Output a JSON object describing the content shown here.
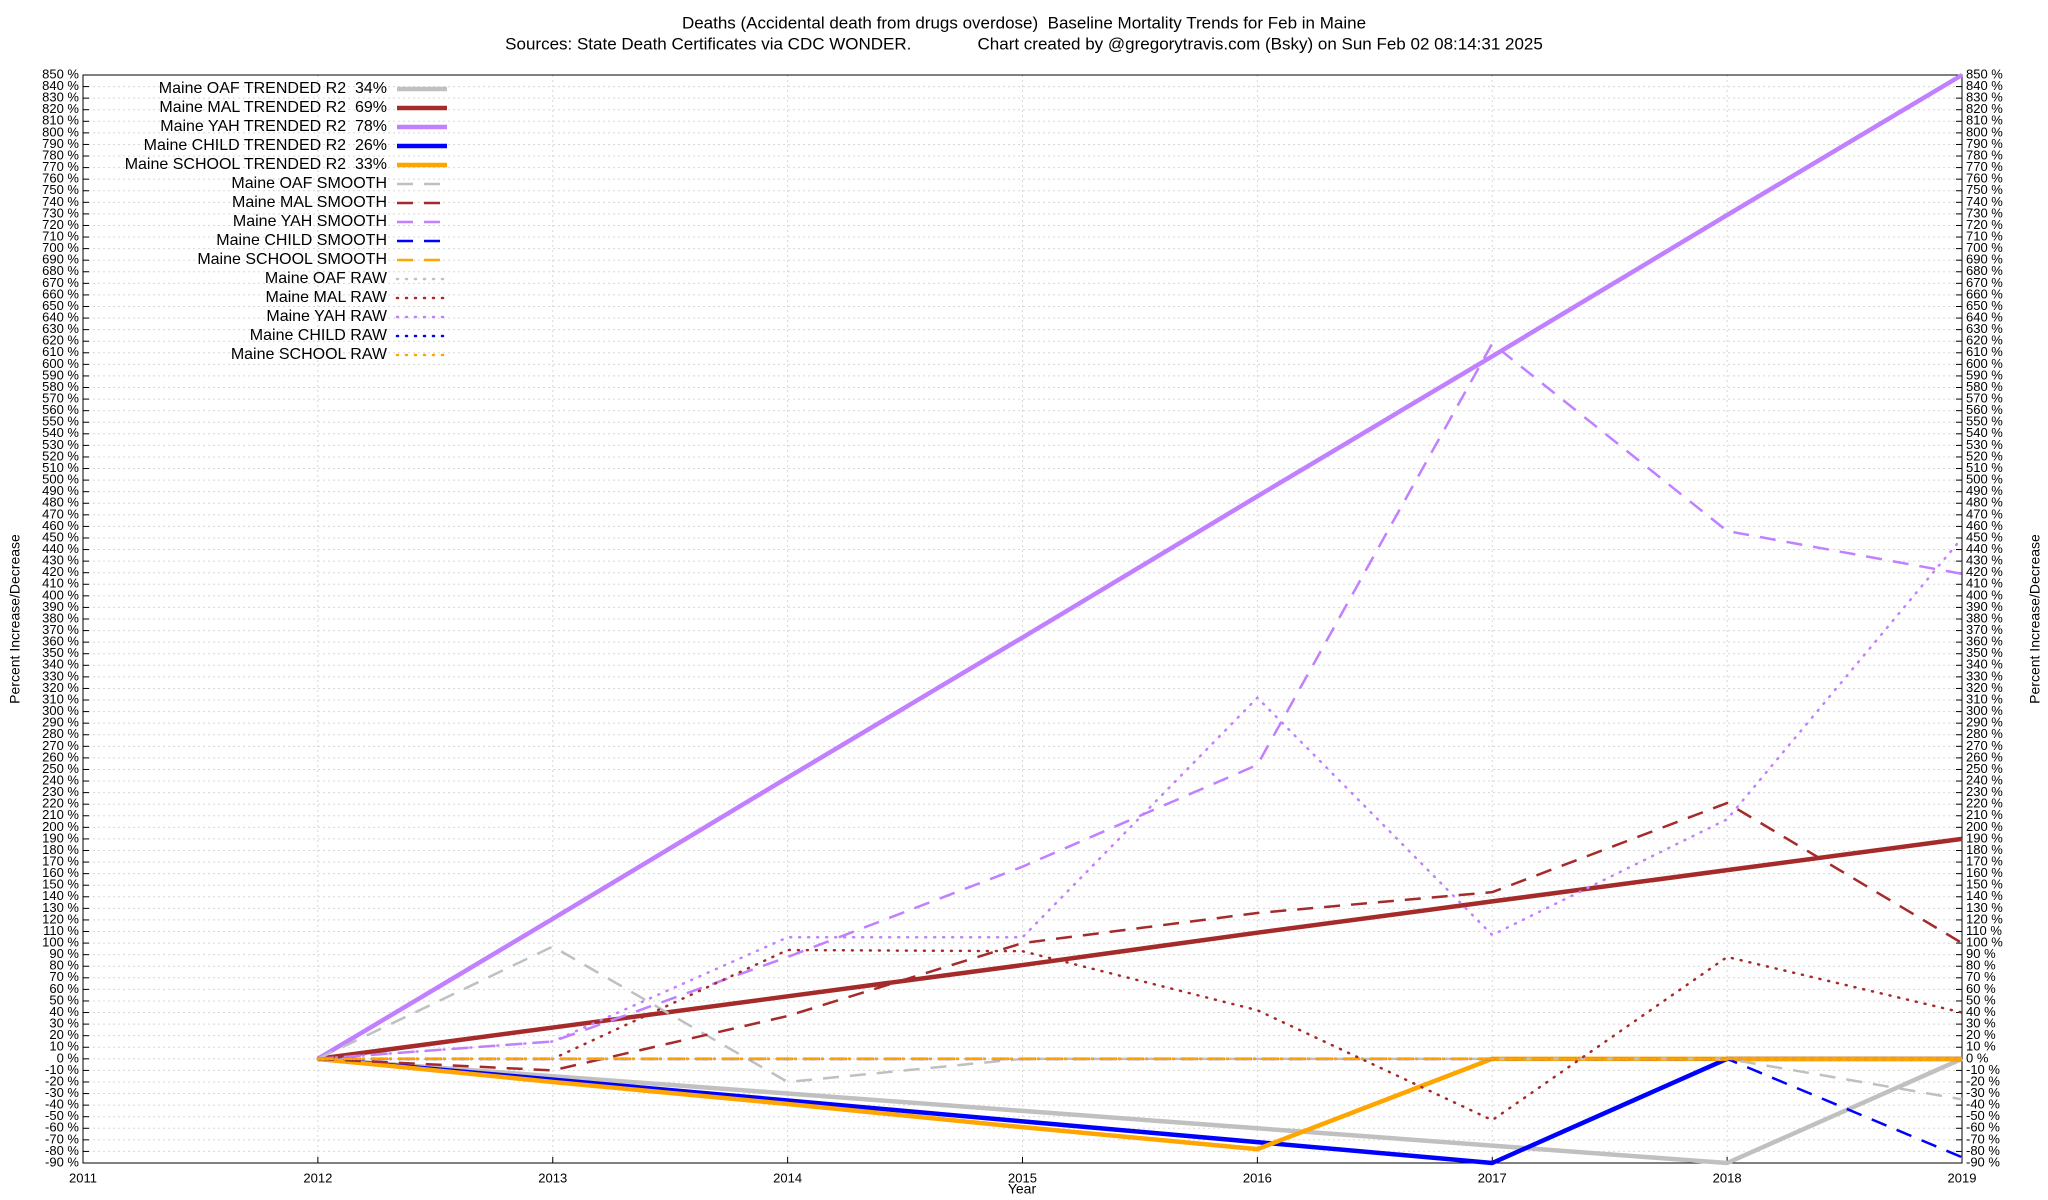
{
  "chart_data": {
    "type": "line",
    "title": "Deaths (Accidental death from drugs overdose)  Baseline Mortality Trends for Feb in Maine",
    "subtitle": "Sources: State Death Certificates via CDC WONDER.              Chart created by @gregorytravis.com (Bsky) on Sun Feb 02 08:14:31 2025",
    "xlabel": "Year",
    "ylabel": "Percent Increase/Decrease",
    "y2label": "Percent Increase/Decrease",
    "grid": true,
    "legend": "top-left",
    "xlim": [
      2011,
      2019
    ],
    "xticks": [
      2011,
      2012,
      2013,
      2014,
      2015,
      2016,
      2017,
      2018,
      2019
    ],
    "ylim": [
      -90,
      850
    ],
    "yticks": [
      {
        "value": -90,
        "label": "-90 %"
      },
      {
        "value": -80,
        "label": "-80 %"
      },
      {
        "value": -70,
        "label": "-70 %"
      },
      {
        "value": -60,
        "label": "-60 %"
      },
      {
        "value": -50,
        "label": "-50 %"
      },
      {
        "value": -40,
        "label": "-40 %"
      },
      {
        "value": -30,
        "label": "-30 %"
      },
      {
        "value": -20,
        "label": "-20 %"
      },
      {
        "value": -10,
        "label": "-10 %"
      },
      {
        "value": 0,
        "label": "0 %"
      },
      {
        "value": 10,
        "label": "10 %"
      },
      {
        "value": 20,
        "label": "20 %"
      },
      {
        "value": 30,
        "label": "30 %"
      },
      {
        "value": 40,
        "label": "40 %"
      },
      {
        "value": 50,
        "label": "50 %"
      },
      {
        "value": 60,
        "label": "60 %"
      },
      {
        "value": 70,
        "label": "70 %"
      },
      {
        "value": 80,
        "label": "80 %"
      },
      {
        "value": 90,
        "label": "90 %"
      },
      {
        "value": 100,
        "label": "100 %"
      },
      {
        "value": 110,
        "label": "110 %"
      },
      {
        "value": 120,
        "label": "120 %"
      },
      {
        "value": 130,
        "label": "130 %"
      },
      {
        "value": 140,
        "label": "140 %"
      },
      {
        "value": 150,
        "label": "150 %"
      },
      {
        "value": 160,
        "label": "160 %"
      },
      {
        "value": 170,
        "label": "170 %"
      },
      {
        "value": 180,
        "label": "180 %"
      },
      {
        "value": 190,
        "label": "190 %"
      },
      {
        "value": 200,
        "label": "200 %"
      },
      {
        "value": 210,
        "label": "210 %"
      },
      {
        "value": 220,
        "label": "220 %"
      },
      {
        "value": 230,
        "label": "230 %"
      },
      {
        "value": 240,
        "label": "240 %"
      },
      {
        "value": 250,
        "label": "250 %"
      },
      {
        "value": 260,
        "label": "260 %"
      },
      {
        "value": 270,
        "label": "270 %"
      },
      {
        "value": 280,
        "label": "280 %"
      },
      {
        "value": 290,
        "label": "290 %"
      },
      {
        "value": 300,
        "label": "300 %"
      },
      {
        "value": 310,
        "label": "310 %"
      },
      {
        "value": 320,
        "label": "320 %"
      },
      {
        "value": 330,
        "label": "330 %"
      },
      {
        "value": 340,
        "label": "340 %"
      },
      {
        "value": 350,
        "label": "350 %"
      },
      {
        "value": 360,
        "label": "360 %"
      },
      {
        "value": 370,
        "label": "370 %"
      },
      {
        "value": 380,
        "label": "380 %"
      },
      {
        "value": 390,
        "label": "390 %"
      },
      {
        "value": 400,
        "label": "400 %"
      },
      {
        "value": 410,
        "label": "410 %"
      },
      {
        "value": 420,
        "label": "420 %"
      },
      {
        "value": 430,
        "label": "430 %"
      },
      {
        "value": 440,
        "label": "440 %"
      },
      {
        "value": 450,
        "label": "450 %"
      },
      {
        "value": 460,
        "label": "460 %"
      },
      {
        "value": 470,
        "label": "470 %"
      },
      {
        "value": 480,
        "label": "480 %"
      },
      {
        "value": 490,
        "label": "490 %"
      },
      {
        "value": 500,
        "label": "500 %"
      },
      {
        "value": 510,
        "label": "510 %"
      },
      {
        "value": 520,
        "label": "520 %"
      },
      {
        "value": 530,
        "label": "530 %"
      },
      {
        "value": 540,
        "label": "540 %"
      },
      {
        "value": 550,
        "label": "550 %"
      },
      {
        "value": 560,
        "label": "560 %"
      },
      {
        "value": 570,
        "label": "570 %"
      },
      {
        "value": 580,
        "label": "580 %"
      },
      {
        "value": 590,
        "label": "590 %"
      },
      {
        "value": 600,
        "label": "600 %"
      },
      {
        "value": 610,
        "label": "610 %"
      },
      {
        "value": 620,
        "label": "620 %"
      },
      {
        "value": 630,
        "label": "630 %"
      },
      {
        "value": 640,
        "label": "640 %"
      },
      {
        "value": 650,
        "label": "650 %"
      },
      {
        "value": 660,
        "label": "660 %"
      },
      {
        "value": 670,
        "label": "670 %"
      },
      {
        "value": 680,
        "label": "680 %"
      },
      {
        "value": 690,
        "label": "690 %"
      },
      {
        "value": 700,
        "label": "700 %"
      },
      {
        "value": 710,
        "label": "710 %"
      },
      {
        "value": 720,
        "label": "720 %"
      },
      {
        "value": 730,
        "label": "730 %"
      },
      {
        "value": 740,
        "label": "740 %"
      },
      {
        "value": 750,
        "label": "750 %"
      },
      {
        "value": 760,
        "label": "760 %"
      },
      {
        "value": 770,
        "label": "770 %"
      },
      {
        "value": 780,
        "label": "780 %"
      },
      {
        "value": 790,
        "label": "790 %"
      },
      {
        "value": 800,
        "label": "800 %"
      },
      {
        "value": 810,
        "label": "810 %"
      },
      {
        "value": 820,
        "label": "820 %"
      },
      {
        "value": 830,
        "label": "830 %"
      },
      {
        "value": 840,
        "label": "840 %"
      },
      {
        "value": 850,
        "label": "850 %"
      }
    ],
    "x": [
      2012,
      2013,
      2014,
      2015,
      2016,
      2017,
      2018,
      2019
    ],
    "series": [
      {
        "name": "Maine OAF TRENDED R2  34%",
        "color": "#c0c0c0",
        "style": "solid",
        "width": 4.5,
        "values": [
          0,
          -15,
          -30,
          -45,
          -60,
          -75,
          -90,
          0
        ]
      },
      {
        "name": "Maine MAL TRENDED R2  69%",
        "color": "#a52a2a",
        "style": "solid",
        "width": 4.5,
        "values": [
          0,
          27,
          54,
          81,
          109,
          136,
          163,
          190
        ]
      },
      {
        "name": "Maine YAH TRENDED R2  78%",
        "color": "#c080ff",
        "style": "solid",
        "width": 4.5,
        "values": [
          0,
          121,
          243,
          364,
          486,
          607,
          729,
          850
        ]
      },
      {
        "name": "Maine CHILD TRENDED R2  26%",
        "color": "#0000ff",
        "style": "solid",
        "width": 4.5,
        "values": [
          0,
          -18,
          -36,
          -54,
          -72,
          -90,
          0,
          0
        ]
      },
      {
        "name": "Maine SCHOOL TRENDED R2  33%",
        "color": "#ffa500",
        "style": "solid",
        "width": 4.5,
        "values": [
          0,
          -20,
          -39,
          -59,
          -78,
          0,
          0,
          0
        ]
      },
      {
        "name": "Maine OAF SMOOTH",
        "color": "#c0c0c0",
        "style": "dashed",
        "width": 2.5,
        "values": [
          0,
          97,
          -20,
          0,
          0,
          0,
          0,
          -35
        ]
      },
      {
        "name": "Maine MAL SMOOTH",
        "color": "#a52a2a",
        "style": "dashed",
        "width": 2.5,
        "values": [
          0,
          -10,
          37,
          100,
          126,
          144,
          221,
          100
        ]
      },
      {
        "name": "Maine YAH SMOOTH",
        "color": "#c080ff",
        "style": "dashed",
        "width": 2.5,
        "values": [
          0,
          15,
          88,
          166,
          254,
          618,
          456,
          419
        ]
      },
      {
        "name": "Maine CHILD SMOOTH",
        "color": "#0000ff",
        "style": "dashed",
        "width": 2.5,
        "values": [
          0,
          0,
          0,
          0,
          0,
          0,
          0,
          -85
        ]
      },
      {
        "name": "Maine SCHOOL SMOOTH",
        "color": "#ffa500",
        "style": "dashed",
        "width": 2.5,
        "values": [
          0,
          0,
          0,
          0,
          0,
          0,
          0,
          0
        ]
      },
      {
        "name": "Maine OAF RAW",
        "color": "#c0c0c0",
        "style": "dotted",
        "width": 2.5,
        "values": [
          0,
          0,
          0,
          0,
          0,
          0,
          0,
          0
        ]
      },
      {
        "name": "Maine MAL RAW",
        "color": "#a52a2a",
        "style": "dotted",
        "width": 2.5,
        "values": [
          0,
          0,
          94,
          93,
          42,
          -53,
          88,
          40
        ]
      },
      {
        "name": "Maine YAH RAW",
        "color": "#c080ff",
        "style": "dotted",
        "width": 2.5,
        "values": [
          0,
          15,
          105,
          105,
          312,
          107,
          207,
          450
        ]
      },
      {
        "name": "Maine CHILD RAW",
        "color": "#0000ff",
        "style": "dotted",
        "width": 2.5,
        "values": [
          0,
          0,
          0,
          0,
          0,
          0,
          0,
          0
        ]
      },
      {
        "name": "Maine SCHOOL RAW",
        "color": "#ffa500",
        "style": "dotted",
        "width": 2.5,
        "values": [
          0,
          0,
          0,
          0,
          0,
          0,
          0,
          0
        ]
      }
    ]
  }
}
